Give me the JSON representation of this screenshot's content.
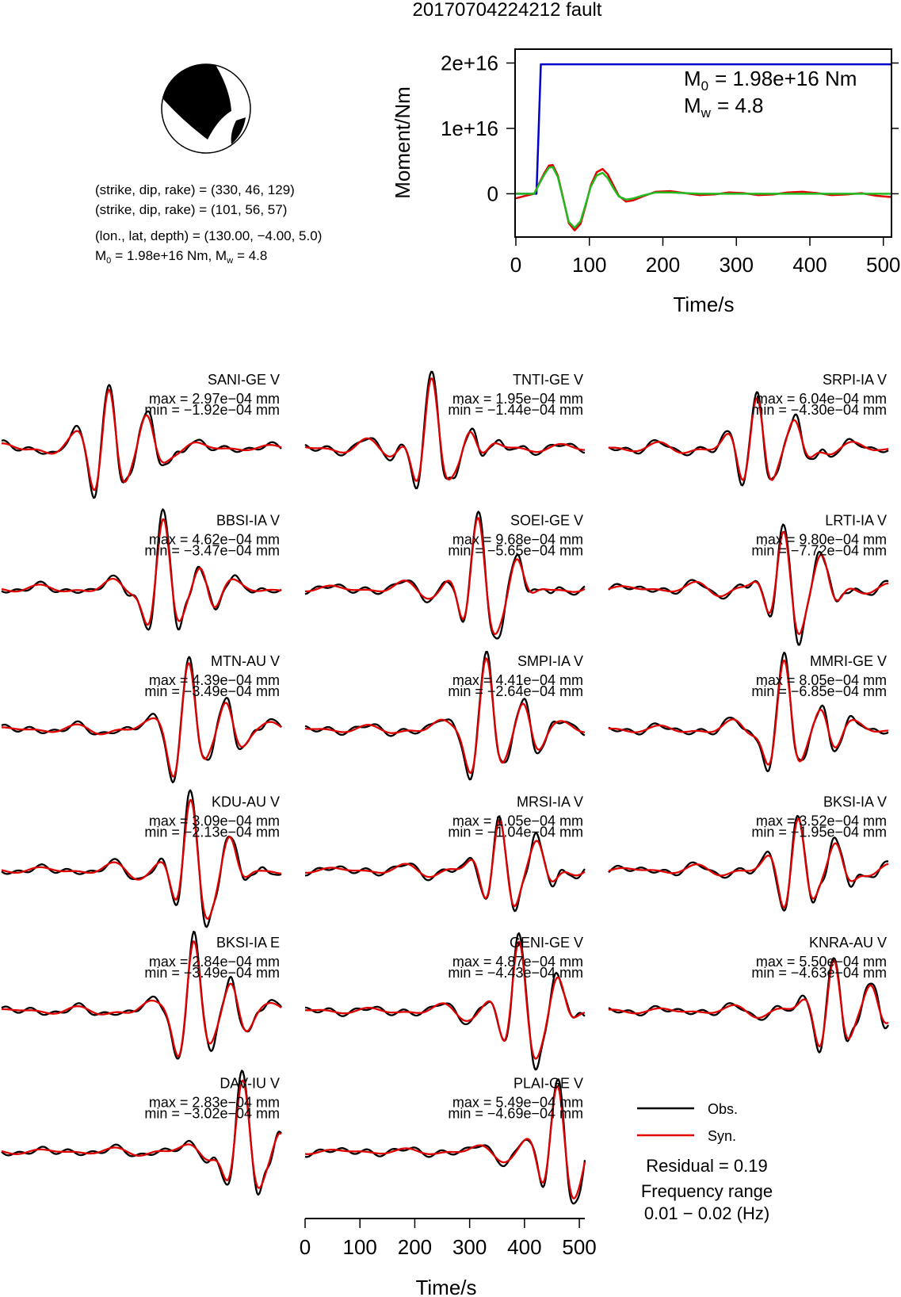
{
  "title": "20170704224212 fault",
  "solution": {
    "plane1": "(strike, dip, rake) = (330, 46, 129)",
    "plane2": "(strike, dip, rake) = (101, 56, 57)",
    "location": "(lon., lat, depth) = (130.00, −4.00, 5.0)",
    "m0_text": "= 1.98e+16 Nm, M",
    "m0_symbol": "M",
    "m0_sub": "0",
    "mw_sub": "w",
    "mw_text": "= 4.8"
  },
  "moment_panel": {
    "ylabel": "Moment/Nm",
    "xlabel": "Time/s",
    "m0_label": "= 1.98e+16 Nm",
    "mw_label": "= 4.8",
    "m0_sym": "M",
    "m0_sub": "0",
    "mw_sym": "M",
    "mw_sub": "w"
  },
  "legend": {
    "obs": "Obs.",
    "syn": "Syn.",
    "residual": "Residual = 0.19",
    "freq_title": "Frequency range",
    "freq_range": "0.01 − 0.02 (Hz)"
  },
  "waveform_xlabel": "Time/s",
  "colors": {
    "observed": "#000000",
    "synthetic": "#e00000",
    "cumulative_moment": "#0000cc",
    "moment_rate_fit": "#22bb22",
    "beachball_fill": "#000000"
  },
  "chart_data": [
    {
      "type": "line",
      "name": "moment",
      "xlabel": "Time/s",
      "ylabel": "Moment/Nm",
      "xlim": [
        0,
        510
      ],
      "ylim": [
        -6500000000000000.0,
        2.2e+16
      ],
      "xticks": [
        0,
        100,
        200,
        300,
        400,
        500
      ],
      "yticks": [
        0,
        1e+16,
        2e+16
      ],
      "ytick_labels": [
        "0",
        "1e+16",
        "2e+16"
      ],
      "series": [
        {
          "color": "#0000cc",
          "x": [
            0,
            15,
            28,
            31,
            34,
            510
          ],
          "y": [
            0,
            0,
            0,
            1e+16,
            1.98e+16,
            1.98e+16
          ]
        },
        {
          "color": "#e00000",
          "x": [
            0,
            10,
            25,
            30,
            38,
            45,
            50,
            57,
            65,
            72,
            80,
            88,
            95,
            102,
            110,
            118,
            125,
            133,
            140,
            150,
            160,
            175,
            190,
            210,
            230,
            250,
            270,
            290,
            310,
            330,
            350,
            370,
            390,
            410,
            430,
            450,
            470,
            490,
            510
          ],
          "y": [
            -700000000000000.0,
            -400000000000000.0,
            0,
            1200000000000000.0,
            3000000000000000.0,
            4300000000000000.0,
            4400000000000000.0,
            2800000000000000.0,
            -1000000000000000.0,
            -4500000000000000.0,
            -5600000000000000.0,
            -4600000000000000.0,
            -1800000000000000.0,
            1300000000000000.0,
            3300000000000000.0,
            3800000000000000.0,
            3000000000000000.0,
            1200000000000000.0,
            -300000000000000.0,
            -1200000000000000.0,
            -1000000000000000.0,
            -300000000000000.0,
            300000000000000.0,
            400000000000000.0,
            100000000000000.0,
            -200000000000000.0,
            -100000000000000.0,
            200000000000000.0,
            100000000000000.0,
            -200000000000000.0,
            -100000000000000.0,
            200000000000000.0,
            300000000000000.0,
            100000000000000.0,
            -200000000000000.0,
            -100000000000000.0,
            100000000000000.0,
            -300000000000000.0,
            -500000000000000.0
          ]
        },
        {
          "color": "#22bb22",
          "x": [
            0,
            25,
            30,
            38,
            45,
            50,
            57,
            65,
            72,
            80,
            88,
            95,
            102,
            110,
            118,
            125,
            133,
            140,
            150,
            160,
            175,
            190,
            210,
            230,
            250,
            270,
            300,
            330,
            360,
            400,
            450,
            510
          ],
          "y": [
            0,
            0,
            1100000000000000.0,
            2800000000000000.0,
            4000000000000000.0,
            4100000000000000.0,
            2600000000000000.0,
            -1100000000000000.0,
            -4300000000000000.0,
            -5200000000000000.0,
            -4200000000000000.0,
            -1600000000000000.0,
            1100000000000000.0,
            2800000000000000.0,
            3200000000000000.0,
            2400000000000000.0,
            800000000000000.0,
            -400000000000000.0,
            -900000000000000.0,
            -700000000000000.0,
            -200000000000000.0,
            200000000000000.0,
            200000000000000.0,
            100000000000000.0,
            0,
            0,
            0,
            0,
            0,
            0,
            0,
            0
          ]
        }
      ]
    },
    {
      "type": "line",
      "name": "waveforms",
      "xlabel": "Time/s",
      "xlim": [
        0,
        510
      ],
      "xticks": [
        0,
        100,
        200,
        300,
        400,
        500
      ],
      "stations": [
        {
          "label": "SANI-GE V",
          "max": "max = 2.97e−04 mm",
          "min": "min = −1.92e−04 mm",
          "peak": 195
        },
        {
          "label": "TNTI-GE V",
          "max": "max = 1.95e−04 mm",
          "min": "min = −1.44e−04 mm",
          "peak": 230
        },
        {
          "label": "SRPI-IA V",
          "max": "max = 6.04e−04 mm",
          "min": "min = −4.30e−04 mm",
          "peak": 270
        },
        {
          "label": "BBSI-IA V",
          "max": "max = 4.62e−04 mm",
          "min": "min = −3.47e−04 mm",
          "peak": 295
        },
        {
          "label": "SOEI-GE V",
          "max": "max = 9.68e−04 mm",
          "min": "min = −5.65e−04 mm",
          "peak": 315
        },
        {
          "label": "LRTI-IA V",
          "max": "max = 9.80e−04 mm",
          "min": "min = −7.72e−04 mm",
          "peak": 320
        },
        {
          "label": "MTN-AU V",
          "max": "max = 4.39e−04 mm",
          "min": "min = −3.49e−04 mm",
          "peak": 340
        },
        {
          "label": "SMPI-IA V",
          "max": "max = 4.41e−04 mm",
          "min": "min = −2.64e−04 mm",
          "peak": 330
        },
        {
          "label": "MMRI-GE V",
          "max": "max = 8.05e−04 mm",
          "min": "min = −6.85e−04 mm",
          "peak": 320
        },
        {
          "label": "KDU-AU V",
          "max": "max = 3.09e−04 mm",
          "min": "min = −2.13e−04 mm",
          "peak": 345
        },
        {
          "label": "MRSI-IA V",
          "max": "max = 1.05e−04 mm",
          "min": "min = −1.04e−04 mm",
          "peak": 355
        },
        {
          "label": "BKSI-IA V",
          "max": "max = 3.52e−04 mm",
          "min": "min = −1.95e−04 mm",
          "peak": 345
        },
        {
          "label": "BKSI-IA E",
          "max": "max = 2.84e−04 mm",
          "min": "min = −3.49e−04 mm",
          "peak": 350
        },
        {
          "label": "GENI-GE V",
          "max": "max = 4.87e−04 mm",
          "min": "min = −4.43e−04 mm",
          "peak": 390
        },
        {
          "label": "KNRA-AU V",
          "max": "max = 5.50e−04 mm",
          "min": "min = −4.63e−04 mm",
          "peak": 410
        },
        {
          "label": "DAV-IU V",
          "max": "max = 2.83e−04 mm",
          "min": "min = −3.02e−04 mm",
          "peak": 440
        },
        {
          "label": "PLAI-GE V",
          "max": "max = 5.49e−04 mm",
          "min": "min = −4.69e−04 mm",
          "peak": 460
        }
      ]
    }
  ]
}
